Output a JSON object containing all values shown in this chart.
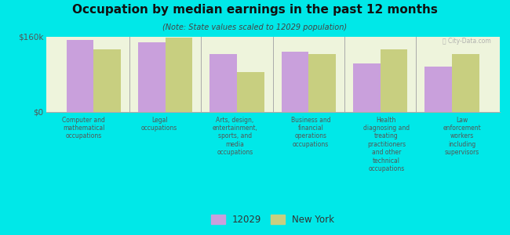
{
  "title": "Occupation by median earnings in the past 12 months",
  "subtitle": "(Note: State values scaled to 12029 population)",
  "background_color": "#00e8e8",
  "plot_bg_color": "#eef4dc",
  "categories": [
    "Computer and\nmathematical\noccupations",
    "Legal\noccupations",
    "Arts, design,\nentertainment,\nsports, and\nmedia\noccupations",
    "Business and\nfinancial\noperations\noccupations",
    "Health\ndiagnosing and\ntreating\npractitioners\nand other\ntechnical\noccupations",
    "Law\nenforcement\nworkers\nincluding\nsupervisors"
  ],
  "values_12029": [
    152000,
    148000,
    122000,
    127000,
    103000,
    96000
  ],
  "values_ny": [
    132000,
    158000,
    84000,
    122000,
    133000,
    122000
  ],
  "color_12029": "#c9a0dc",
  "color_ny": "#c8cf80",
  "ylim": [
    0,
    160000
  ],
  "yticks": [
    0,
    160000
  ],
  "ytick_labels": [
    "$0",
    "$160k"
  ],
  "legend_label_12029": "12029",
  "legend_label_ny": "New York",
  "watermark": "ⓒ City-Data.com",
  "bar_width": 0.38
}
